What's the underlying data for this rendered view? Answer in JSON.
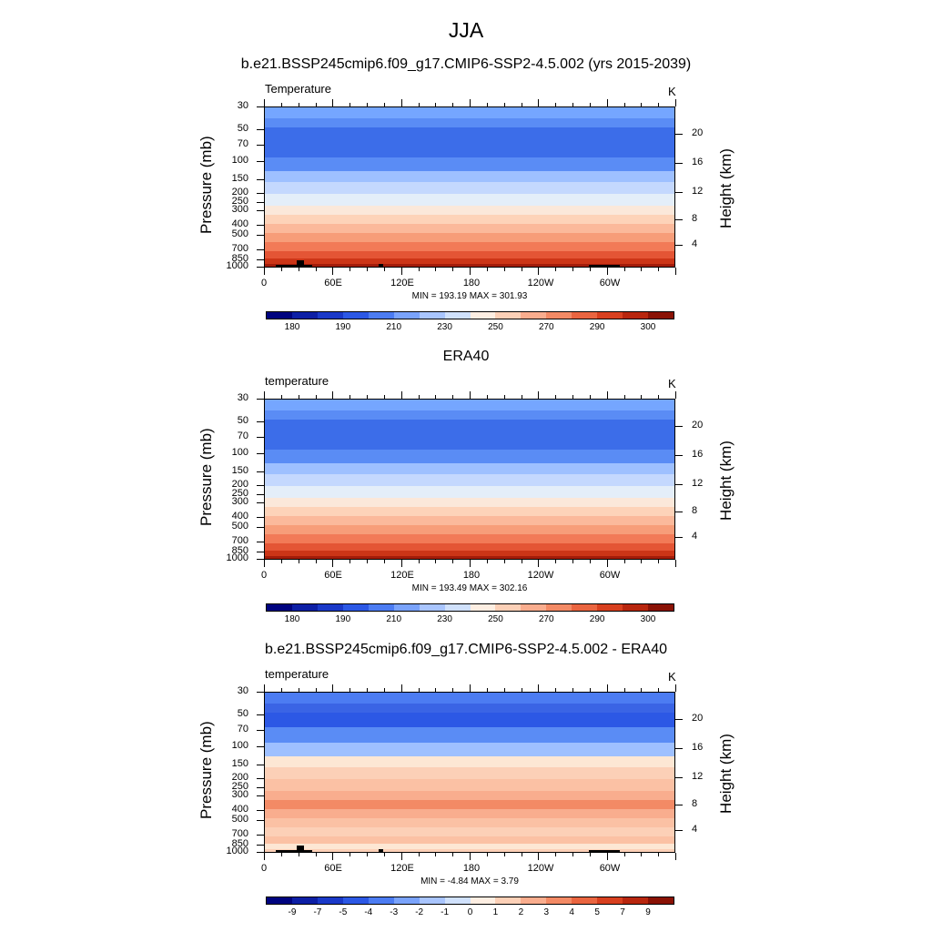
{
  "title": "JJA",
  "panels": [
    {
      "id": "model",
      "title": "b.e21.BSSP245cmip6.f09_g17.CMIP6-SSP2-4.5.002 (yrs 2015-2039)",
      "field_label": "Temperature",
      "units": "K",
      "stats": "MIN = 193.19  MAX = 301.93",
      "bands": [
        "#75a6ff",
        "#5a8cf5",
        "#3c6de9",
        "#3c6de9",
        "#5a8cf5",
        "#9ec0ff",
        "#c4d8fe",
        "#e4eef9",
        "#fbe8da",
        "#fdd3b9",
        "#fbb99b",
        "#f79d79",
        "#f27a57",
        "#e45535",
        "#cc3517",
        "#a31c0a"
      ],
      "colorbar": {
        "colors": [
          "#00037f",
          "#0d1fa5",
          "#1a39c8",
          "#2c58e5",
          "#4c7cf2",
          "#7aa3fb",
          "#a9c5fe",
          "#d0e1fc",
          "#fdeee2",
          "#fcd0b7",
          "#f9ad8e",
          "#f38a65",
          "#ea6540",
          "#d8401f",
          "#b8260e",
          "#8a1205"
        ],
        "labels": [
          "180",
          "190",
          "210",
          "230",
          "250",
          "270",
          "290",
          "300"
        ]
      }
    },
    {
      "id": "obs",
      "title": "ERA40",
      "field_label": "temperature",
      "units": "K",
      "stats": "MIN = 193.49  MAX = 302.16",
      "bands": [
        "#75a6ff",
        "#5a8cf5",
        "#3c6de9",
        "#3c6de9",
        "#5a8cf5",
        "#9ec0ff",
        "#c4d8fe",
        "#e4eef9",
        "#fbe8da",
        "#fdd3b9",
        "#fbb99b",
        "#f79d79",
        "#f27a57",
        "#e45535",
        "#cc3517",
        "#a31c0a"
      ],
      "colorbar": {
        "colors": [
          "#00037f",
          "#0d1fa5",
          "#1a39c8",
          "#2c58e5",
          "#4c7cf2",
          "#7aa3fb",
          "#a9c5fe",
          "#d0e1fc",
          "#fdeee2",
          "#fcd0b7",
          "#f9ad8e",
          "#f38a65",
          "#ea6540",
          "#d8401f",
          "#b8260e",
          "#8a1205"
        ],
        "labels": [
          "180",
          "190",
          "210",
          "230",
          "250",
          "270",
          "290",
          "300"
        ]
      }
    },
    {
      "id": "diff",
      "title": "b.e21.BSSP245cmip6.f09_g17.CMIP6-SSP2-4.5.002 - ERA40",
      "field_label": "temperature",
      "units": "K",
      "stats": "MIN = -4.84  MAX =  3.79",
      "bands": [
        "#4c7cf2",
        "#3a64e5",
        "#2c58e5",
        "#5a8cf5",
        "#9ec0ff",
        "#fde7d4",
        "#fcd0b7",
        "#fbc1a4",
        "#f9ad8e",
        "#f38a65",
        "#f9ad8e",
        "#fbc1a4",
        "#fcd0b7",
        "#fbc1a4",
        "#fde7d4",
        "#fcd0b7"
      ],
      "colorbar": {
        "colors": [
          "#00037f",
          "#0d1fa5",
          "#1a39c8",
          "#2c58e5",
          "#4c7cf2",
          "#7aa3fb",
          "#a9c5fe",
          "#d0e1fc",
          "#fdeee2",
          "#fcd0b7",
          "#f9ad8e",
          "#f38a65",
          "#ea6540",
          "#d8401f",
          "#b8260e",
          "#8a1205"
        ],
        "labels": [
          "-9",
          "-7",
          "-5",
          "-4",
          "-3",
          "-2",
          "-1",
          "0",
          "1",
          "2",
          "3",
          "4",
          "5",
          "7",
          "9"
        ]
      }
    }
  ],
  "chart_data": [
    {
      "type": "heatmap",
      "title": "b.e21.BSSP245cmip6.f09_g17.CMIP6-SSP2-4.5.002 (yrs 2015-2039)",
      "variable": "Temperature",
      "units": "K",
      "x_ticks": [
        "0",
        "60E",
        "120E",
        "180",
        "120W",
        "60W"
      ],
      "y_left_label": "Pressure (mb)",
      "y_left_ticks": [
        30,
        50,
        70,
        100,
        150,
        200,
        250,
        300,
        400,
        500,
        700,
        850,
        1000
      ],
      "y_right_label": "Height (km)",
      "y_right_ticks": [
        4,
        8,
        12,
        16,
        20
      ],
      "min": 193.19,
      "max": 301.93,
      "contour_levels": [
        180,
        190,
        210,
        230,
        250,
        270,
        290,
        300
      ]
    },
    {
      "type": "heatmap",
      "title": "ERA40",
      "variable": "temperature",
      "units": "K",
      "x_ticks": [
        "0",
        "60E",
        "120E",
        "180",
        "120W",
        "60W"
      ],
      "y_left_label": "Pressure (mb)",
      "y_left_ticks": [
        30,
        50,
        70,
        100,
        150,
        200,
        250,
        300,
        400,
        500,
        700,
        850,
        1000
      ],
      "y_right_label": "Height (km)",
      "y_right_ticks": [
        4,
        8,
        12,
        16,
        20
      ],
      "min": 193.49,
      "max": 302.16,
      "contour_levels": [
        180,
        190,
        210,
        230,
        250,
        270,
        290,
        300
      ]
    },
    {
      "type": "heatmap",
      "title": "b.e21.BSSP245cmip6.f09_g17.CMIP6-SSP2-4.5.002 - ERA40",
      "variable": "temperature",
      "units": "K",
      "x_ticks": [
        "0",
        "60E",
        "120E",
        "180",
        "120W",
        "60W"
      ],
      "y_left_label": "Pressure (mb)",
      "y_left_ticks": [
        30,
        50,
        70,
        100,
        150,
        200,
        250,
        300,
        400,
        500,
        700,
        850,
        1000
      ],
      "y_right_label": "Height (km)",
      "y_right_ticks": [
        4,
        8,
        12,
        16,
        20
      ],
      "min": -4.84,
      "max": 3.79,
      "contour_levels": [
        -9,
        -7,
        -5,
        -4,
        -3,
        -2,
        -1,
        0,
        1,
        2,
        3,
        4,
        5,
        7,
        9
      ]
    }
  ],
  "axes": {
    "y_left_label": "Pressure (mb)",
    "y_right_label": "Height (km)",
    "pressure_ticks": [
      "30",
      "50",
      "70",
      "100",
      "150",
      "200",
      "250",
      "300",
      "400",
      "500",
      "700",
      "850",
      "1000"
    ],
    "height_ticks": [
      "20",
      "16",
      "12",
      "8",
      "4"
    ],
    "lon_ticks": [
      "0",
      "60E",
      "120E",
      "180",
      "120W",
      "60W"
    ]
  }
}
